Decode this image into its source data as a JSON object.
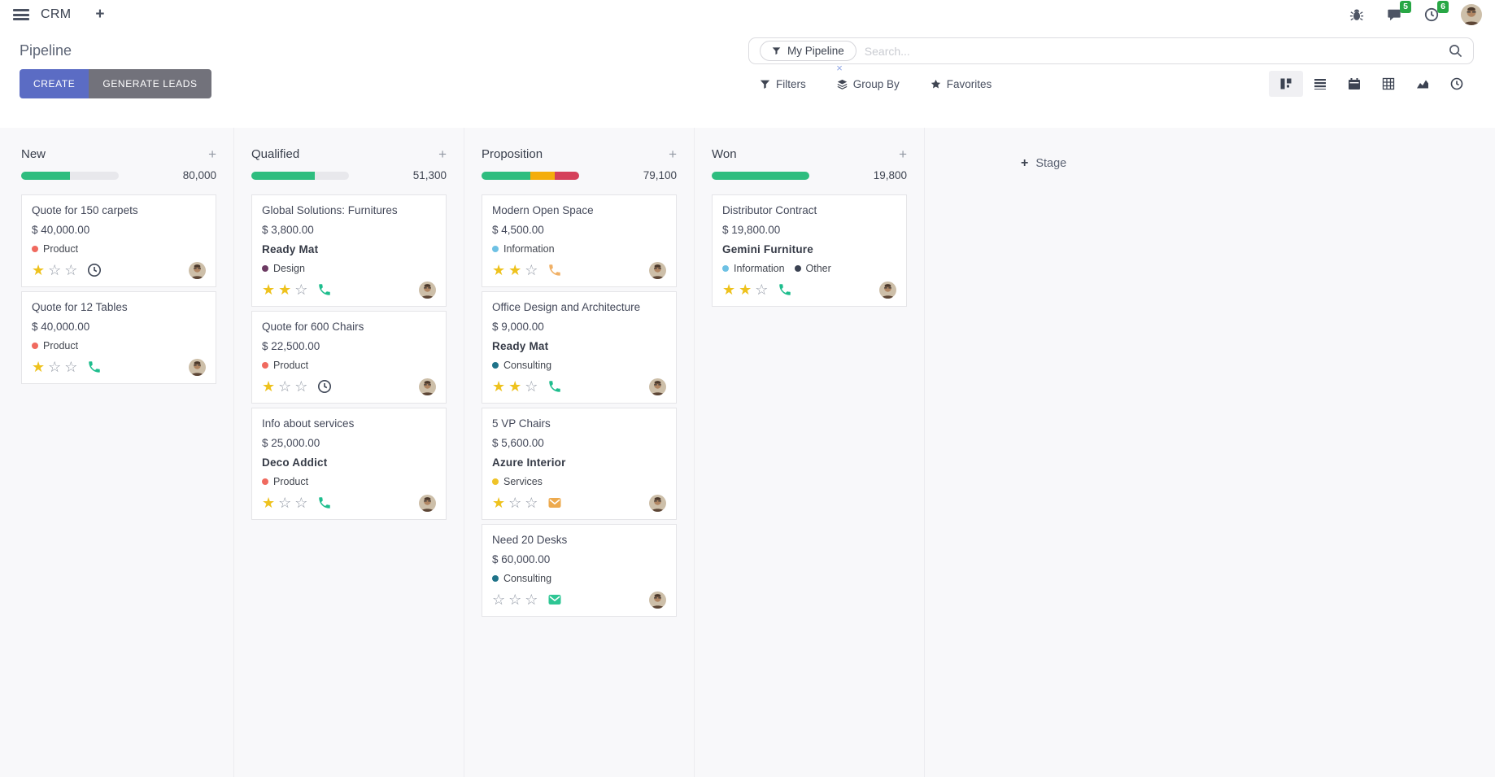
{
  "navbar": {
    "app_name": "CRM",
    "message_badge": "5",
    "activity_badge": "6"
  },
  "control_panel": {
    "title": "Pipeline",
    "create_label": "CREATE",
    "generate_label": "GENERATE LEADS",
    "search": {
      "facet_label": "My Pipeline",
      "facet_remove": "×",
      "placeholder": "Search..."
    },
    "menus": {
      "filters": "Filters",
      "group_by": "Group By",
      "favorites": "Favorites"
    },
    "view_switcher": [
      {
        "name": "kanban",
        "active": true
      },
      {
        "name": "list",
        "active": false
      },
      {
        "name": "calendar",
        "active": false
      },
      {
        "name": "pivot",
        "active": false
      },
      {
        "name": "graph",
        "active": false
      },
      {
        "name": "activity",
        "active": false
      }
    ]
  },
  "board": {
    "add_stage": "Stage",
    "colors": {
      "progress_green": "#2ebd7f",
      "progress_yellow": "#f4ad0c",
      "progress_red": "#d5405a",
      "star_filled": "#eec21d"
    },
    "columns": [
      {
        "name": "New",
        "total": "80,000",
        "progress": [
          {
            "color": "#2ebd7f",
            "pct": 50
          }
        ],
        "cards": [
          {
            "title": "Quote for 150 carpets",
            "amount": "$ 40,000.00",
            "partner": "",
            "tags": [
              {
                "label": "Product",
                "color": "#f06a5f"
              }
            ],
            "stars": 1,
            "activity": {
              "type": "clock",
              "color": "#3f4757"
            }
          },
          {
            "title": "Quote for 12 Tables",
            "amount": "$ 40,000.00",
            "partner": "",
            "tags": [
              {
                "label": "Product",
                "color": "#f06a5f"
              }
            ],
            "stars": 1,
            "activity": {
              "type": "phone",
              "color": "#1ebd8d"
            }
          }
        ]
      },
      {
        "name": "Qualified",
        "total": "51,300",
        "progress": [
          {
            "color": "#2ebd7f",
            "pct": 65
          }
        ],
        "cards": [
          {
            "title": "Global Solutions: Furnitures",
            "amount": "$ 3,800.00",
            "partner": "Ready Mat",
            "tags": [
              {
                "label": "Design",
                "color": "#6d3b63"
              }
            ],
            "stars": 2,
            "activity": {
              "type": "phone",
              "color": "#1ebd8d"
            }
          },
          {
            "title": "Quote for 600 Chairs",
            "amount": "$ 22,500.00",
            "partner": "",
            "tags": [
              {
                "label": "Product",
                "color": "#f06a5f"
              }
            ],
            "stars": 1,
            "activity": {
              "type": "clock",
              "color": "#3f4757"
            }
          },
          {
            "title": "Info about services",
            "amount": "$ 25,000.00",
            "partner": "Deco Addict",
            "tags": [
              {
                "label": "Product",
                "color": "#f06a5f"
              }
            ],
            "stars": 1,
            "activity": {
              "type": "phone",
              "color": "#1ebd8d"
            }
          }
        ]
      },
      {
        "name": "Proposition",
        "total": "79,100",
        "progress": [
          {
            "color": "#2ebd7f",
            "pct": 50
          },
          {
            "color": "#f4ad0c",
            "pct": 25
          },
          {
            "color": "#d5405a",
            "pct": 25
          }
        ],
        "cards": [
          {
            "title": "Modern Open Space",
            "amount": "$ 4,500.00",
            "partner": "",
            "tags": [
              {
                "label": "Information",
                "color": "#6ec1e4"
              }
            ],
            "stars": 2,
            "activity": {
              "type": "phone",
              "color": "#f0b066"
            }
          },
          {
            "title": "Office Design and Architecture",
            "amount": "$ 9,000.00",
            "partner": "Ready Mat",
            "tags": [
              {
                "label": "Consulting",
                "color": "#1f7389"
              }
            ],
            "stars": 2,
            "activity": {
              "type": "phone",
              "color": "#1ebd8d"
            }
          },
          {
            "title": "5 VP Chairs",
            "amount": "$ 5,600.00",
            "partner": "Azure Interior",
            "tags": [
              {
                "label": "Services",
                "color": "#efc328"
              }
            ],
            "stars": 1,
            "activity": {
              "type": "envelope",
              "color": "#edaa4e"
            }
          },
          {
            "title": "Need 20 Desks",
            "amount": "$ 60,000.00",
            "partner": "",
            "tags": [
              {
                "label": "Consulting",
                "color": "#1f7389"
              }
            ],
            "stars": 0,
            "activity": {
              "type": "envelope",
              "color": "#2ec694"
            }
          }
        ]
      },
      {
        "name": "Won",
        "total": "19,800",
        "progress": [
          {
            "color": "#2ebd7f",
            "pct": 100
          }
        ],
        "cards": [
          {
            "title": "Distributor Contract",
            "amount": "$ 19,800.00",
            "partner": "Gemini Furniture",
            "tags": [
              {
                "label": "Information",
                "color": "#6ec1e4"
              },
              {
                "label": "Other",
                "color": "#3b4252"
              }
            ],
            "stars": 2,
            "activity": {
              "type": "phone",
              "color": "#1ebd8d"
            }
          }
        ]
      }
    ]
  }
}
